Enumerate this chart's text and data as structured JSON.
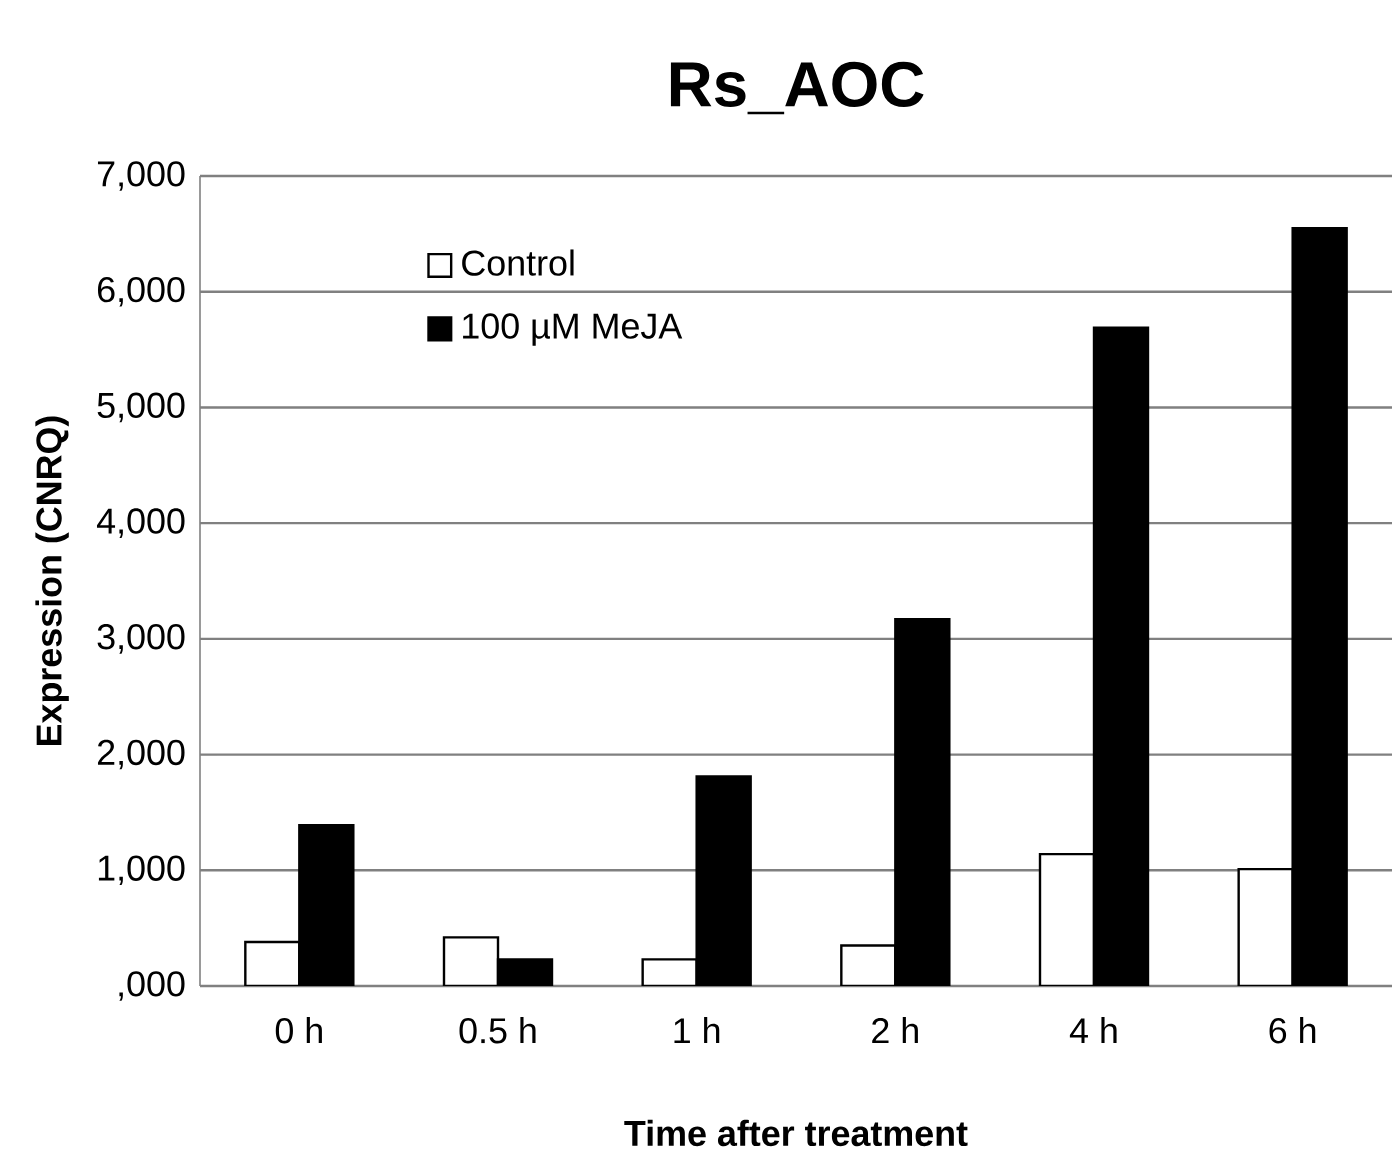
{
  "chart_data": {
    "type": "bar",
    "title": "Rs_AOC",
    "xlabel": "Time after treatment",
    "ylabel": "Expression (CNRQ)",
    "categories": [
      "0 h",
      "0.5 h",
      "1 h",
      "2 h",
      "4 h",
      "6 h"
    ],
    "series": [
      {
        "name": "Control",
        "color": "#ffffff",
        "values": [
          380,
          420,
          230,
          350,
          1140,
          1010
        ]
      },
      {
        "name": "100 µM MeJA",
        "color": "#000000",
        "values": [
          1390,
          230,
          1810,
          3170,
          5690,
          6550
        ]
      }
    ],
    "ylim": [
      0,
      7000
    ],
    "yticks": [
      {
        "value": 0,
        "label": ",000"
      },
      {
        "value": 1000,
        "label": "1,000"
      },
      {
        "value": 2000,
        "label": "2,000"
      },
      {
        "value": 3000,
        "label": "3,000"
      },
      {
        "value": 4000,
        "label": "4,000"
      },
      {
        "value": 5000,
        "label": "5,000"
      },
      {
        "value": 6000,
        "label": "6,000"
      },
      {
        "value": 7000,
        "label": "7,000"
      }
    ],
    "grid": "y",
    "legend": "top left"
  }
}
